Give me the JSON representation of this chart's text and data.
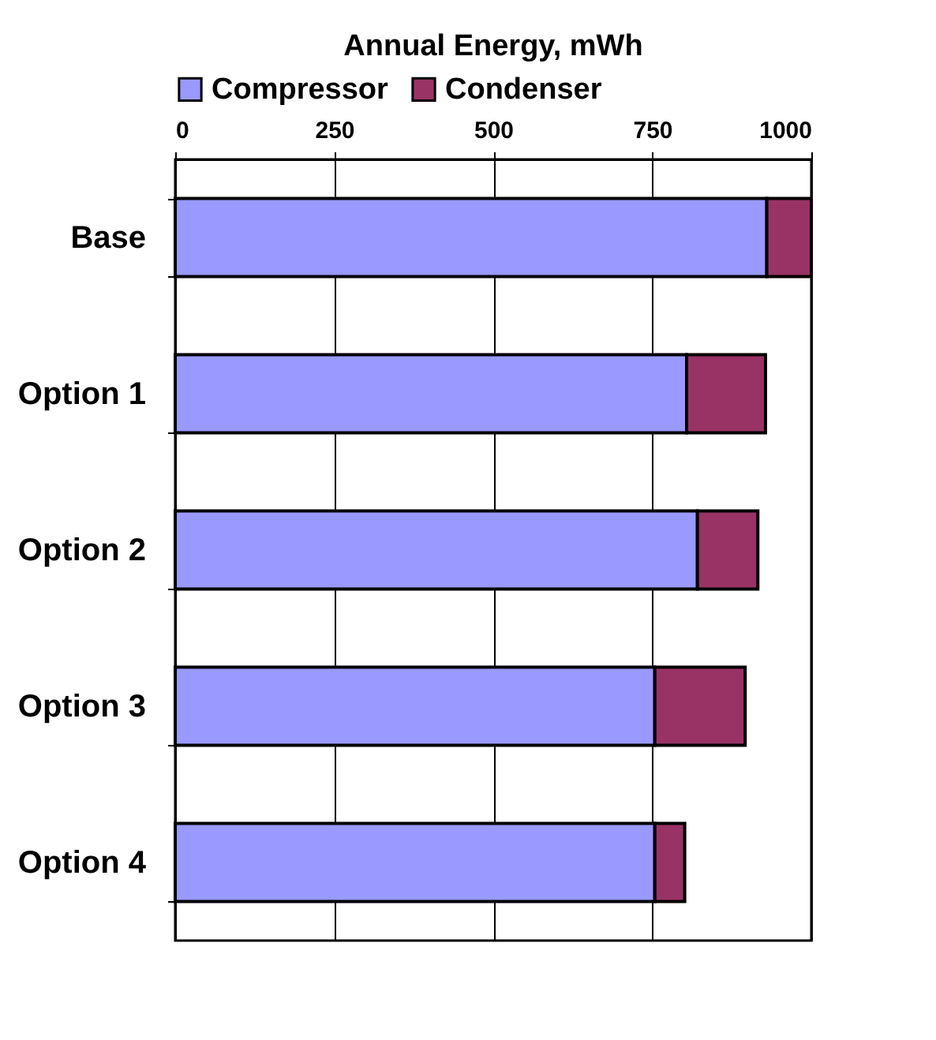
{
  "chart_data": {
    "type": "bar",
    "orientation": "horizontal",
    "stacked": true,
    "title": "Annual Energy, mWh",
    "categories": [
      "Base",
      "Option 1",
      "Option 2",
      "Option 3",
      "Option 4"
    ],
    "series": [
      {
        "name": "Compressor",
        "color": "#9999ff",
        "values": [
          930,
          804,
          821,
          754,
          754
        ]
      },
      {
        "name": "Condenser",
        "color": "#993366",
        "values": [
          70,
          124,
          95,
          142,
          47
        ]
      }
    ],
    "xlim": [
      0,
      1000
    ],
    "xticks": [
      0,
      250,
      500,
      750,
      1000
    ],
    "grid": "x",
    "legend": "top"
  }
}
